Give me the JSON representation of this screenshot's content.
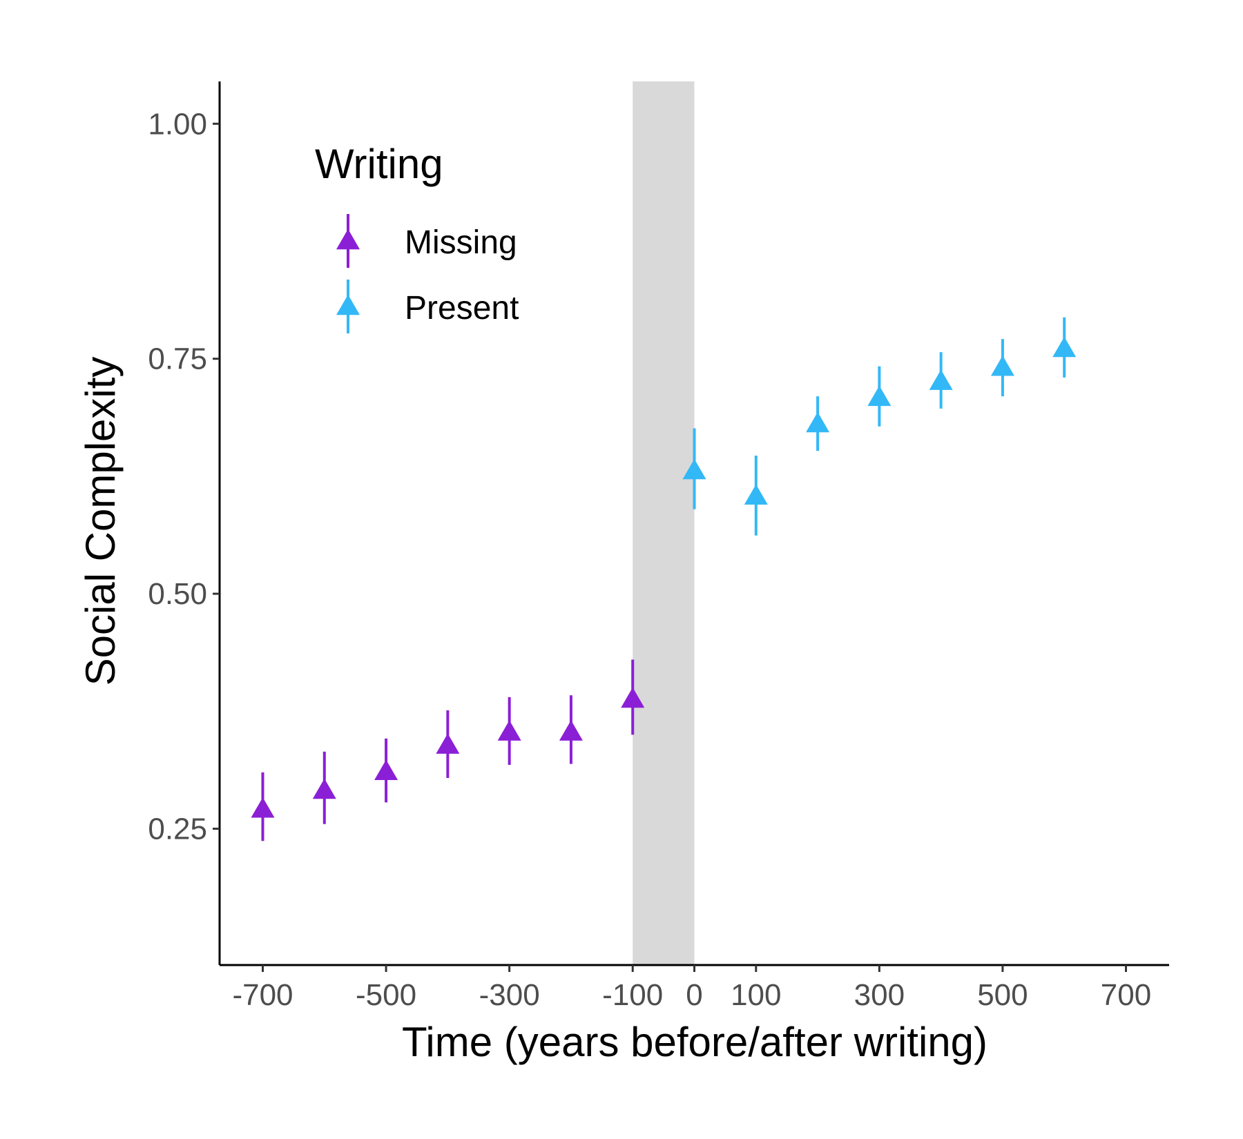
{
  "chart_data": {
    "type": "scatter",
    "title": "",
    "xlabel": "Time (years before/after writing)",
    "ylabel": "Social Complexity",
    "xlim": [
      -770,
      770
    ],
    "ylim": [
      0.105,
      1.045
    ],
    "x_ticks": [
      -700,
      -500,
      -300,
      -100,
      0,
      100,
      300,
      500,
      700
    ],
    "x_tick_labels": [
      "-700",
      "-500",
      "-300",
      "-100",
      "0",
      "100",
      "300",
      "500",
      "700"
    ],
    "y_ticks": [
      0.25,
      0.5,
      0.75,
      1.0
    ],
    "y_tick_labels": [
      "0.25",
      "0.50",
      "0.75",
      "1.00"
    ],
    "grid": false,
    "shaded_region": {
      "x": [
        -100,
        0
      ],
      "color": "#d9d9d9"
    },
    "legend": {
      "title": "Writing",
      "placement": "top-left",
      "entries": [
        "Missing",
        "Present"
      ]
    },
    "series": [
      {
        "name": "Missing",
        "color": "#8b1fd6",
        "marker": "triangle",
        "points": [
          {
            "x": -700,
            "y": 0.27,
            "lo": 0.237,
            "hi": 0.31
          },
          {
            "x": -600,
            "y": 0.29,
            "lo": 0.255,
            "hi": 0.332
          },
          {
            "x": -500,
            "y": 0.31,
            "lo": 0.278,
            "hi": 0.346
          },
          {
            "x": -400,
            "y": 0.338,
            "lo": 0.304,
            "hi": 0.376
          },
          {
            "x": -300,
            "y": 0.352,
            "lo": 0.318,
            "hi": 0.39
          },
          {
            "x": -200,
            "y": 0.352,
            "lo": 0.319,
            "hi": 0.392
          },
          {
            "x": -100,
            "y": 0.387,
            "lo": 0.35,
            "hi": 0.43
          }
        ]
      },
      {
        "name": "Present",
        "color": "#33b8f7",
        "marker": "triangle",
        "points": [
          {
            "x": 0,
            "y": 0.63,
            "lo": 0.59,
            "hi": 0.676
          },
          {
            "x": 100,
            "y": 0.603,
            "lo": 0.562,
            "hi": 0.647
          },
          {
            "x": 200,
            "y": 0.68,
            "lo": 0.652,
            "hi": 0.71
          },
          {
            "x": 300,
            "y": 0.708,
            "lo": 0.678,
            "hi": 0.742
          },
          {
            "x": 400,
            "y": 0.725,
            "lo": 0.697,
            "hi": 0.757
          },
          {
            "x": 500,
            "y": 0.74,
            "lo": 0.71,
            "hi": 0.771
          },
          {
            "x": 600,
            "y": 0.76,
            "lo": 0.73,
            "hi": 0.794
          }
        ]
      }
    ]
  }
}
